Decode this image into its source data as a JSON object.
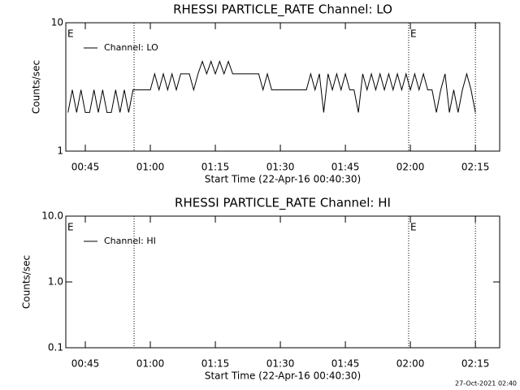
{
  "chart_data": [
    {
      "type": "line",
      "title": "RHESSI PARTICLE_RATE Channel: LO",
      "x_label": "Start Time (22-Apr-16 00:40:30)",
      "y_label": "Counts/sec",
      "xlim": [
        40.5,
        140.6
      ],
      "xticks": [
        {
          "value": 45,
          "label": "00:45"
        },
        {
          "value": 60,
          "label": "01:00"
        },
        {
          "value": 75,
          "label": "01:15"
        },
        {
          "value": 90,
          "label": "01:30"
        },
        {
          "value": 105,
          "label": "01:45"
        },
        {
          "value": 120,
          "label": "02:00"
        },
        {
          "value": 135,
          "label": "02:15"
        }
      ],
      "ylim": [
        1,
        10
      ],
      "yticks": [
        1,
        10
      ],
      "log_y": true,
      "vlines": [
        56.25,
        119.6,
        135
      ],
      "annotations": [
        {
          "text": "E",
          "x": 40.5
        },
        {
          "text": "E",
          "x": 119.6
        }
      ],
      "x": [
        41,
        42,
        43,
        44,
        45,
        46,
        47,
        48,
        49,
        50,
        51,
        52,
        53,
        54,
        55,
        56,
        57,
        58,
        59,
        60,
        61,
        62,
        63,
        64,
        65,
        66,
        67,
        68,
        69,
        70,
        71,
        72,
        73,
        74,
        75,
        76,
        77,
        78,
        79,
        80,
        81,
        82,
        83,
        84,
        85,
        86,
        87,
        88,
        89,
        90,
        91,
        92,
        93,
        94,
        95,
        96,
        97,
        98,
        99,
        100,
        101,
        102,
        103,
        104,
        105,
        106,
        107,
        108,
        109,
        110,
        111,
        112,
        113,
        114,
        115,
        116,
        117,
        118,
        119,
        120,
        121,
        122,
        123,
        124,
        125,
        126,
        127,
        128,
        129,
        130,
        131,
        132,
        133,
        134,
        135
      ],
      "series": [
        {
          "name": "Channel: LO",
          "color": "#000000",
          "values": [
            2,
            3,
            2,
            3,
            2,
            2,
            3,
            2,
            3,
            2,
            2,
            3,
            2,
            3,
            2,
            3,
            3,
            3,
            3,
            3,
            4,
            3,
            4,
            3,
            4,
            3,
            4,
            4,
            4,
            3,
            4,
            5,
            4,
            5,
            4,
            5,
            4,
            5,
            4,
            4,
            4,
            4,
            4,
            4,
            4,
            3,
            4,
            3,
            3,
            3,
            3,
            3,
            3,
            3,
            3,
            3,
            4,
            3,
            4,
            2,
            4,
            3,
            4,
            3,
            4,
            3,
            3,
            2,
            4,
            3,
            4,
            3,
            4,
            3,
            4,
            3,
            4,
            3,
            4,
            3,
            4,
            3,
            4,
            3,
            3,
            2,
            3,
            4,
            2,
            3,
            2,
            3,
            4,
            3,
            2
          ]
        }
      ]
    },
    {
      "type": "line",
      "title": "RHESSI PARTICLE_RATE Channel: HI",
      "x_label": "Start Time (22-Apr-16 00:40:30)",
      "y_label": "Counts/sec",
      "xlim": [
        40.5,
        140.6
      ],
      "xticks": [
        {
          "value": 45,
          "label": "00:45"
        },
        {
          "value": 60,
          "label": "01:00"
        },
        {
          "value": 75,
          "label": "01:15"
        },
        {
          "value": 90,
          "label": "01:30"
        },
        {
          "value": 105,
          "label": "01:45"
        },
        {
          "value": 120,
          "label": "02:00"
        },
        {
          "value": 135,
          "label": "02:15"
        }
      ],
      "ylim": [
        0.1,
        10
      ],
      "yticks": [
        0.1,
        {
          "value": 1,
          "label": "1.0"
        },
        {
          "value": 10,
          "label": "10.0"
        }
      ],
      "log_y": true,
      "vlines": [
        56.25,
        119.6,
        135
      ],
      "annotations": [
        {
          "text": "E",
          "x": 40.5
        },
        {
          "text": "E",
          "x": 119.6
        }
      ],
      "x": [],
      "series": [
        {
          "name": "Channel: HI",
          "color": "#000000",
          "values": []
        }
      ]
    }
  ],
  "footer": "27-Oct-2021 02:40"
}
